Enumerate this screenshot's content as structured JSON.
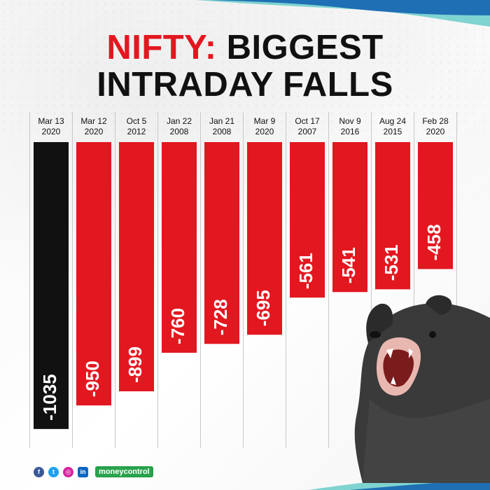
{
  "title": {
    "part1": "NIFTY:",
    "part2": " BIGGEST",
    "line2": "INTRADAY FALLS"
  },
  "colors": {
    "accent_red": "#e3171f",
    "highlight_black": "#111111",
    "wave_blue": "#1f6fb5",
    "wave_teal": "#7fd3d0"
  },
  "chart_data": {
    "type": "bar",
    "orientation": "vertical-downward",
    "categories": [
      [
        "Mar 13",
        "2020"
      ],
      [
        "Mar 12",
        "2020"
      ],
      [
        "Oct 5",
        "2012"
      ],
      [
        "Jan 22",
        "2008"
      ],
      [
        "Jan 21",
        "2008"
      ],
      [
        "Mar 9",
        "2020"
      ],
      [
        "Oct 17",
        "2007"
      ],
      [
        "Nov 9",
        "2016"
      ],
      [
        "Aug 24",
        "2015"
      ],
      [
        "Feb 28",
        "2020"
      ]
    ],
    "values": [
      -1035,
      -950,
      -899,
      -760,
      -728,
      -695,
      -561,
      -541,
      -531,
      -458
    ],
    "labels": [
      "-1035",
      "-950",
      "-899",
      "-760",
      "-728",
      "-695",
      "-561",
      "-541",
      "-531",
      "-458"
    ],
    "highlight_index": 0,
    "title": "NIFTY: BIGGEST INTRADAY FALLS",
    "xlabel": "",
    "ylabel": "",
    "grid": "vertical lines between columns",
    "legend": "none"
  },
  "footer": {
    "social": [
      {
        "icon": "facebook-icon",
        "glyph": "f",
        "color": "#3b5998"
      },
      {
        "icon": "twitter-icon",
        "glyph": "t",
        "color": "#1da1f2"
      },
      {
        "icon": "instagram-icon",
        "glyph": "◎",
        "color": "#d6249f"
      },
      {
        "icon": "linkedin-icon",
        "glyph": "in",
        "color": "#0a66c2"
      }
    ],
    "brand": "moneycontrol"
  }
}
